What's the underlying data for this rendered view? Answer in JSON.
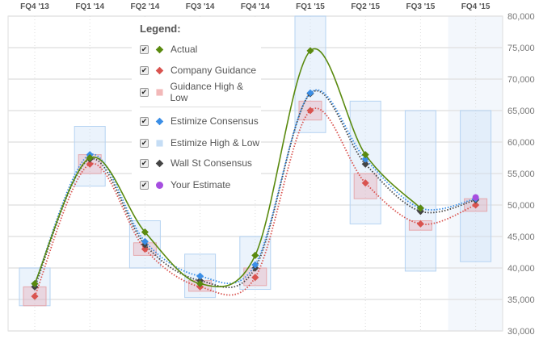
{
  "chart_data": {
    "type": "line",
    "title": "",
    "categories": [
      "FQ4 '13",
      "FQ1 '14",
      "FQ2 '14",
      "FQ3 '14",
      "FQ4 '14",
      "FQ1 '15",
      "FQ2 '15",
      "FQ3 '15",
      "FQ4 '15"
    ],
    "yaxis": {
      "min": 30000,
      "max": 80000,
      "ticks": [
        30000,
        35000,
        40000,
        45000,
        50000,
        55000,
        60000,
        65000,
        70000,
        75000,
        80000
      ],
      "tick_labels": [
        "30,000",
        "35,000",
        "40,000",
        "45,000",
        "50,000",
        "55,000",
        "60,000",
        "65,000",
        "70,000",
        "75,000",
        "80,000"
      ],
      "position": "right"
    },
    "highlighted_category": "FQ4 '15",
    "series": [
      {
        "name": "Actual",
        "kind": "line-solid",
        "color": "#5a8a0f",
        "values": [
          37500,
          57500,
          45700,
          37500,
          42000,
          74500,
          58000,
          49500,
          null
        ]
      },
      {
        "name": "Company Guidance",
        "kind": "line-dotted",
        "color": "#d9534f",
        "values": [
          35500,
          56500,
          43000,
          37000,
          38500,
          65000,
          53500,
          47000,
          50000
        ]
      },
      {
        "name": "Guidance High & Low",
        "kind": "range",
        "color": "#f2b8b8",
        "low": [
          34000,
          55000,
          42000,
          36300,
          37200,
          63500,
          51000,
          46000,
          49000
        ],
        "high": [
          37000,
          58000,
          44000,
          38000,
          40000,
          66500,
          55000,
          47500,
          51000
        ]
      },
      {
        "name": "Estimize Consensus",
        "kind": "line-dotted",
        "color": "#3a8ee6",
        "values": [
          37500,
          58000,
          44200,
          38700,
          40500,
          67800,
          57300,
          49500,
          51000
        ]
      },
      {
        "name": "Estimize High & Low",
        "kind": "range",
        "color": "#c5ddf5",
        "low": [
          34000,
          53000,
          40000,
          35300,
          36600,
          61500,
          47000,
          39500,
          41000
        ],
        "high": [
          40000,
          62500,
          47500,
          42200,
          45000,
          80000,
          66500,
          65000,
          65000
        ]
      },
      {
        "name": "Wall St Consensus",
        "kind": "line-dotted",
        "color": "#444444",
        "values": [
          37000,
          57300,
          43700,
          38000,
          40000,
          67700,
          56500,
          49000,
          50800
        ]
      },
      {
        "name": "Your Estimate",
        "kind": "point",
        "color": "#a64ee0",
        "values": [
          null,
          null,
          null,
          null,
          null,
          null,
          null,
          null,
          51200
        ]
      }
    ],
    "legend": {
      "title": "Legend:",
      "placement": "top-left"
    }
  }
}
